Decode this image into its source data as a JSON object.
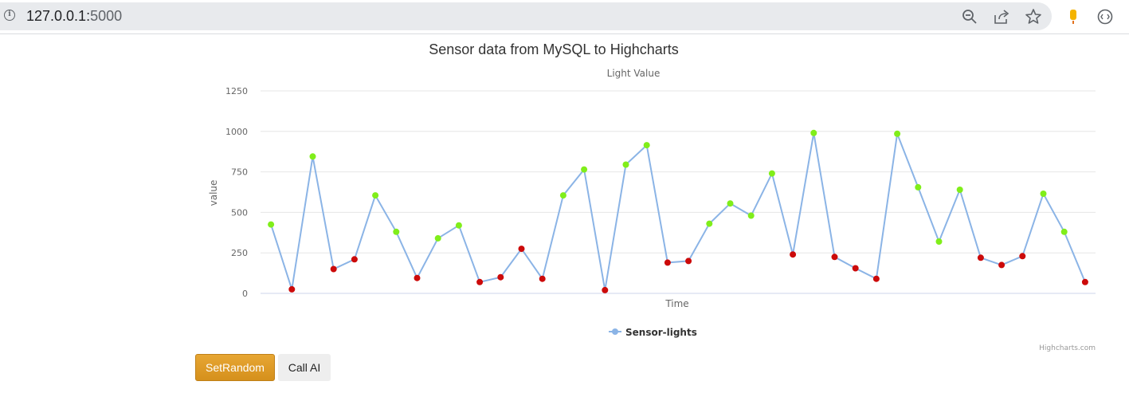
{
  "browser": {
    "url_host": "127.0.0.1:",
    "url_port": "5000",
    "icons": [
      "info-icon",
      "zoom-out-icon",
      "share-icon",
      "bookmark-star-icon",
      "extension-icon",
      "profile-icon"
    ]
  },
  "chart_data": {
    "type": "line",
    "title": "Sensor data from MySQL to Highcharts",
    "subtitle": "Light Value",
    "xlabel": "Time",
    "ylabel": "value",
    "ylim": [
      0,
      1250
    ],
    "yticks": [
      0,
      250,
      500,
      750,
      1000,
      1250
    ],
    "grid": true,
    "legend_placement": "bottom-center",
    "credits": "Highcharts.com",
    "line_color": "#8bb4e6",
    "high_color": "#80ee1a",
    "low_color": "#cc0a0a",
    "series": [
      {
        "name": "Sensor-lights",
        "values": [
          425,
          25,
          845,
          150,
          210,
          605,
          380,
          95,
          340,
          420,
          70,
          100,
          275,
          90,
          605,
          765,
          20,
          795,
          915,
          190,
          200,
          430,
          555,
          480,
          740,
          240,
          990,
          225,
          155,
          90,
          985,
          655,
          320,
          640,
          220,
          175,
          230,
          615,
          380,
          70
        ]
      }
    ]
  },
  "buttons": {
    "set_random": "SetRandom",
    "call_ai": "Call AI"
  }
}
